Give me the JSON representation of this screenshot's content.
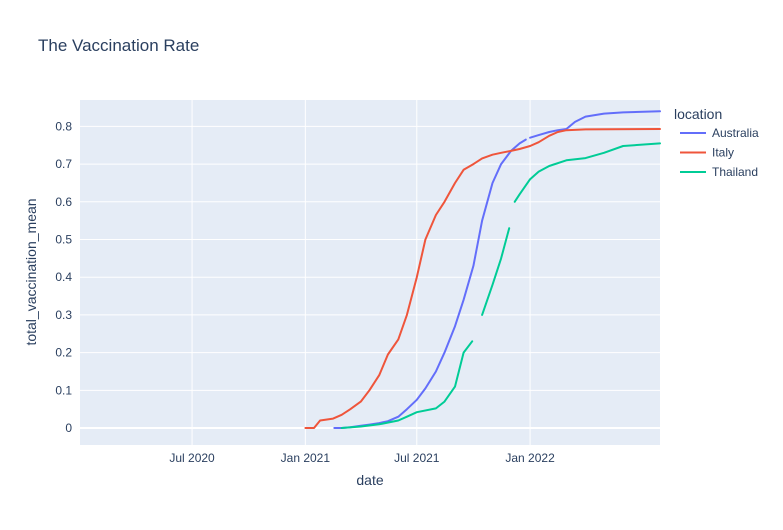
{
  "chart_data": {
    "type": "line",
    "title": "The Vaccination Rate",
    "xlabel": "date",
    "ylabel": "total_vaccination_mean",
    "xlim": [
      "2020-01-01",
      "2022-07-31"
    ],
    "ylim": [
      -0.045,
      0.87
    ],
    "x_ticks": [
      {
        "date": "2020-07-01",
        "label": "Jul 2020"
      },
      {
        "date": "2021-01-01",
        "label": "Jan 2021"
      },
      {
        "date": "2021-07-01",
        "label": "Jul 2021"
      },
      {
        "date": "2022-01-01",
        "label": "Jan 2022"
      }
    ],
    "y_ticks": [
      {
        "value": 0,
        "label": "0"
      },
      {
        "value": 0.1,
        "label": "0.1"
      },
      {
        "value": 0.2,
        "label": "0.2"
      },
      {
        "value": 0.3,
        "label": "0.3"
      },
      {
        "value": 0.4,
        "label": "0.4"
      },
      {
        "value": 0.5,
        "label": "0.5"
      },
      {
        "value": 0.6,
        "label": "0.6"
      },
      {
        "value": 0.7,
        "label": "0.7"
      },
      {
        "value": 0.8,
        "label": "0.8"
      }
    ],
    "grid": true,
    "background": "#e5ecf6",
    "legend": {
      "title": "location",
      "position": "right"
    },
    "series": [
      {
        "name": "Australia",
        "color": "#636efa",
        "segments": [
          [
            [
              "2021-02-17",
              0.0
            ],
            [
              "2021-03-01",
              0.0
            ],
            [
              "2021-03-15",
              0.002
            ],
            [
              "2021-04-01",
              0.006
            ],
            [
              "2021-04-15",
              0.009
            ],
            [
              "2021-05-01",
              0.013
            ],
            [
              "2021-05-15",
              0.018
            ],
            [
              "2021-06-01",
              0.03
            ],
            [
              "2021-06-15",
              0.05
            ],
            [
              "2021-07-01",
              0.075
            ],
            [
              "2021-07-15",
              0.105
            ],
            [
              "2021-08-01",
              0.15
            ],
            [
              "2021-08-15",
              0.2
            ],
            [
              "2021-09-01",
              0.27
            ],
            [
              "2021-09-15",
              0.34
            ],
            [
              "2021-10-01",
              0.43
            ],
            [
              "2021-10-15",
              0.55
            ],
            [
              "2021-11-01",
              0.65
            ],
            [
              "2021-11-15",
              0.7
            ],
            [
              "2021-12-01",
              0.735
            ],
            [
              "2021-12-15",
              0.755
            ],
            [
              "2021-12-25",
              0.765
            ]
          ],
          [
            [
              "2022-01-01",
              0.77
            ],
            [
              "2022-01-15",
              0.777
            ],
            [
              "2022-02-01",
              0.785
            ],
            [
              "2022-02-15",
              0.79
            ],
            [
              "2022-03-01",
              0.793
            ],
            [
              "2022-03-15",
              0.812
            ],
            [
              "2022-04-01",
              0.826
            ],
            [
              "2022-05-01",
              0.834
            ],
            [
              "2022-06-01",
              0.837
            ],
            [
              "2022-07-31",
              0.84
            ]
          ]
        ]
      },
      {
        "name": "Italy",
        "color": "#ef553b",
        "segments": [
          [
            [
              "2021-01-01",
              0.0
            ],
            [
              "2021-01-15",
              0.0
            ],
            [
              "2021-01-25",
              0.02
            ],
            [
              "2021-02-15",
              0.025
            ],
            [
              "2021-03-01",
              0.035
            ],
            [
              "2021-03-15",
              0.05
            ],
            [
              "2021-04-01",
              0.07
            ],
            [
              "2021-04-15",
              0.1
            ],
            [
              "2021-05-01",
              0.14
            ],
            [
              "2021-05-15",
              0.195
            ],
            [
              "2021-06-01",
              0.235
            ],
            [
              "2021-06-15",
              0.3
            ],
            [
              "2021-07-01",
              0.4
            ],
            [
              "2021-07-15",
              0.5
            ],
            [
              "2021-08-01",
              0.565
            ],
            [
              "2021-08-15",
              0.6
            ],
            [
              "2021-09-01",
              0.65
            ],
            [
              "2021-09-15",
              0.685
            ],
            [
              "2021-10-01",
              0.7
            ],
            [
              "2021-10-15",
              0.715
            ],
            [
              "2021-11-01",
              0.725
            ],
            [
              "2021-11-15",
              0.73
            ],
            [
              "2021-12-01",
              0.735
            ],
            [
              "2021-12-15",
              0.74
            ],
            [
              "2022-01-01",
              0.748
            ],
            [
              "2022-01-15",
              0.758
            ],
            [
              "2022-02-01",
              0.775
            ],
            [
              "2022-02-15",
              0.785
            ],
            [
              "2022-03-01",
              0.79
            ],
            [
              "2022-04-01",
              0.792
            ],
            [
              "2022-07-31",
              0.793
            ]
          ]
        ]
      },
      {
        "name": "Thailand",
        "color": "#00cc96",
        "segments": [
          [
            [
              "2021-03-01",
              0.0
            ],
            [
              "2021-04-01",
              0.004
            ],
            [
              "2021-05-01",
              0.01
            ],
            [
              "2021-06-01",
              0.02
            ],
            [
              "2021-06-15",
              0.03
            ],
            [
              "2021-07-01",
              0.042
            ],
            [
              "2021-08-01",
              0.052
            ],
            [
              "2021-08-15",
              0.07
            ],
            [
              "2021-09-01",
              0.11
            ],
            [
              "2021-09-15",
              0.2
            ],
            [
              "2021-09-29",
              0.23
            ]
          ],
          [
            [
              "2021-10-15",
              0.3
            ],
            [
              "2021-11-01",
              0.38
            ],
            [
              "2021-11-15",
              0.45
            ],
            [
              "2021-11-28",
              0.53
            ]
          ],
          [
            [
              "2021-12-07",
              0.6
            ],
            [
              "2021-12-15",
              0.62
            ],
            [
              "2022-01-01",
              0.66
            ],
            [
              "2022-01-15",
              0.68
            ],
            [
              "2022-02-01",
              0.695
            ],
            [
              "2022-03-01",
              0.71
            ],
            [
              "2022-04-01",
              0.716
            ],
            [
              "2022-05-01",
              0.73
            ],
            [
              "2022-06-01",
              0.748
            ],
            [
              "2022-07-31",
              0.755
            ]
          ]
        ]
      }
    ]
  }
}
